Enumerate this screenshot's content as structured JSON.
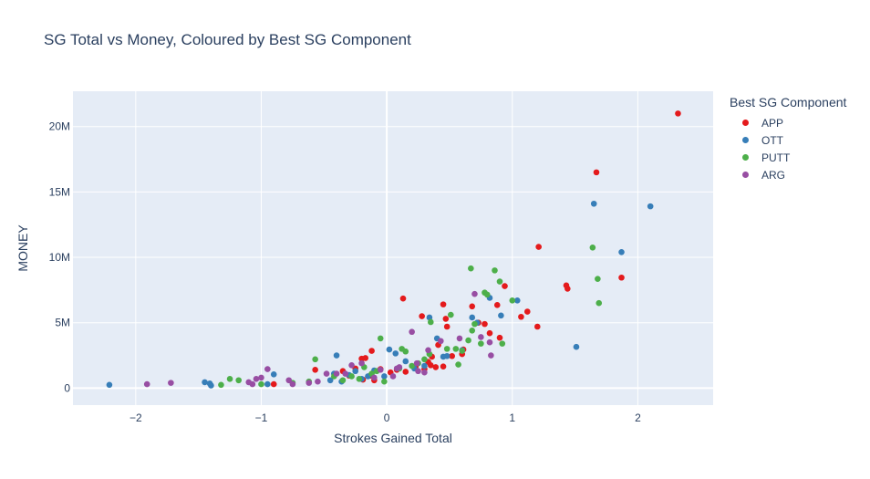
{
  "chart_data": {
    "type": "scatter",
    "title": "SG Total vs Money, Coloured by Best SG Component",
    "xlabel": "Strokes Gained Total",
    "ylabel": "MONEY",
    "xlim": [
      -2.5,
      2.6
    ],
    "ylim": [
      -1300000,
      22700000
    ],
    "x_ticks": [
      -2,
      -1,
      0,
      1,
      2
    ],
    "x_tick_labels": [
      "−2",
      "−1",
      "0",
      "1",
      "2"
    ],
    "y_ticks": [
      0,
      5000000,
      10000000,
      15000000,
      20000000
    ],
    "y_tick_labels": [
      "0",
      "5M",
      "10M",
      "15M",
      "20M"
    ],
    "grid": true,
    "legend_position": "right",
    "legend_title": "Best SG Component",
    "series": [
      {
        "name": "APP",
        "color": "#e41a1c",
        "x": [
          2.32,
          1.67,
          1.21,
          1.87,
          1.43,
          1.44,
          1.12,
          1.07,
          1.2,
          0.94,
          0.9,
          0.82,
          0.88,
          0.68,
          0.73,
          0.45,
          0.13,
          0.47,
          0.28,
          0.48,
          0.78,
          0.41,
          0.36,
          0.35,
          0.45,
          0.39,
          0.61,
          0.6,
          0.52,
          0.33,
          0.23,
          0.3,
          0.08,
          0.03,
          -0.05,
          -0.12,
          -0.2,
          -0.25,
          -0.3,
          -0.17,
          -0.35,
          -0.57,
          -0.13,
          -0.19,
          -0.1,
          0.15,
          -0.9
        ],
        "y": [
          21000000,
          16500000,
          10800000,
          8450000,
          7850000,
          7600000,
          5850000,
          5450000,
          4700000,
          7800000,
          3850000,
          4200000,
          6350000,
          6250000,
          5000000,
          6400000,
          6850000,
          5300000,
          5500000,
          4700000,
          4900000,
          3300000,
          2400000,
          1750000,
          1650000,
          1600000,
          2950000,
          2600000,
          2450000,
          2000000,
          1650000,
          1450000,
          1400000,
          1200000,
          1450000,
          2850000,
          2250000,
          1500000,
          950000,
          2300000,
          1300000,
          1400000,
          950000,
          650000,
          600000,
          1250000,
          300000
        ]
      },
      {
        "name": "OTT",
        "color": "#377eb8",
        "x": [
          1.65,
          2.1,
          1.87,
          1.51,
          1.04,
          0.91,
          0.82,
          0.68,
          0.72,
          0.6,
          0.48,
          0.4,
          0.34,
          0.22,
          0.15,
          0.07,
          0.02,
          -0.02,
          -0.1,
          -0.15,
          -0.2,
          -0.25,
          -0.3,
          -0.4,
          -0.42,
          -0.36,
          -0.45,
          -0.9,
          -0.95,
          -1.4,
          -1.45,
          -1.41,
          -2.21,
          0.45,
          0.3
        ],
        "y": [
          14100000,
          13900000,
          10400000,
          3150000,
          6700000,
          5550000,
          6900000,
          5400000,
          5000000,
          2900000,
          2450000,
          3800000,
          5400000,
          1500000,
          2050000,
          2650000,
          2950000,
          900000,
          1350000,
          900000,
          700000,
          1300000,
          1000000,
          2500000,
          1100000,
          500000,
          600000,
          1050000,
          300000,
          200000,
          450000,
          350000,
          250000,
          2400000,
          1700000
        ]
      },
      {
        "name": "PUTT",
        "color": "#4daf4a",
        "x": [
          1.64,
          1.68,
          1.69,
          0.67,
          0.86,
          0.9,
          1.0,
          0.78,
          0.8,
          0.92,
          0.7,
          0.68,
          0.75,
          0.65,
          0.51,
          0.55,
          0.6,
          0.57,
          0.48,
          0.35,
          0.34,
          0.3,
          0.25,
          0.2,
          0.15,
          0.12,
          0.1,
          -0.05,
          -0.08,
          -0.12,
          -0.18,
          -0.22,
          -0.28,
          -0.35,
          -0.42,
          -0.57,
          -0.62,
          -0.75,
          -1.0,
          -1.18,
          -1.25,
          -1.32,
          -0.02
        ],
        "y": [
          10750000,
          8350000,
          6500000,
          9150000,
          9000000,
          8150000,
          6700000,
          7300000,
          7150000,
          3400000,
          4900000,
          4400000,
          3400000,
          3650000,
          5600000,
          3000000,
          2850000,
          1800000,
          3000000,
          5050000,
          2600000,
          2200000,
          1900000,
          1700000,
          2800000,
          3000000,
          1500000,
          3800000,
          1300000,
          1100000,
          1600000,
          700000,
          900000,
          600000,
          900000,
          2200000,
          500000,
          400000,
          300000,
          600000,
          700000,
          250000,
          500000
        ]
      },
      {
        "name": "ARG",
        "color": "#984ea3",
        "x": [
          0.7,
          0.82,
          0.83,
          0.75,
          0.58,
          0.43,
          0.33,
          0.2,
          0.24,
          0.1,
          0.08,
          0.05,
          -0.05,
          -0.1,
          -0.2,
          -0.28,
          -0.33,
          -0.4,
          -0.48,
          -0.55,
          -0.62,
          -0.75,
          -0.78,
          -0.95,
          -1.0,
          -1.04,
          -1.07,
          -1.1,
          -1.72,
          -1.91,
          0.3,
          0.25
        ],
        "y": [
          7200000,
          3500000,
          2500000,
          3900000,
          3800000,
          3600000,
          2900000,
          4300000,
          1900000,
          1600000,
          1500000,
          900000,
          1400000,
          800000,
          1900000,
          1750000,
          1100000,
          1100000,
          1100000,
          500000,
          400000,
          300000,
          600000,
          1450000,
          800000,
          700000,
          300000,
          450000,
          400000,
          300000,
          1200000,
          1300000
        ]
      }
    ]
  }
}
